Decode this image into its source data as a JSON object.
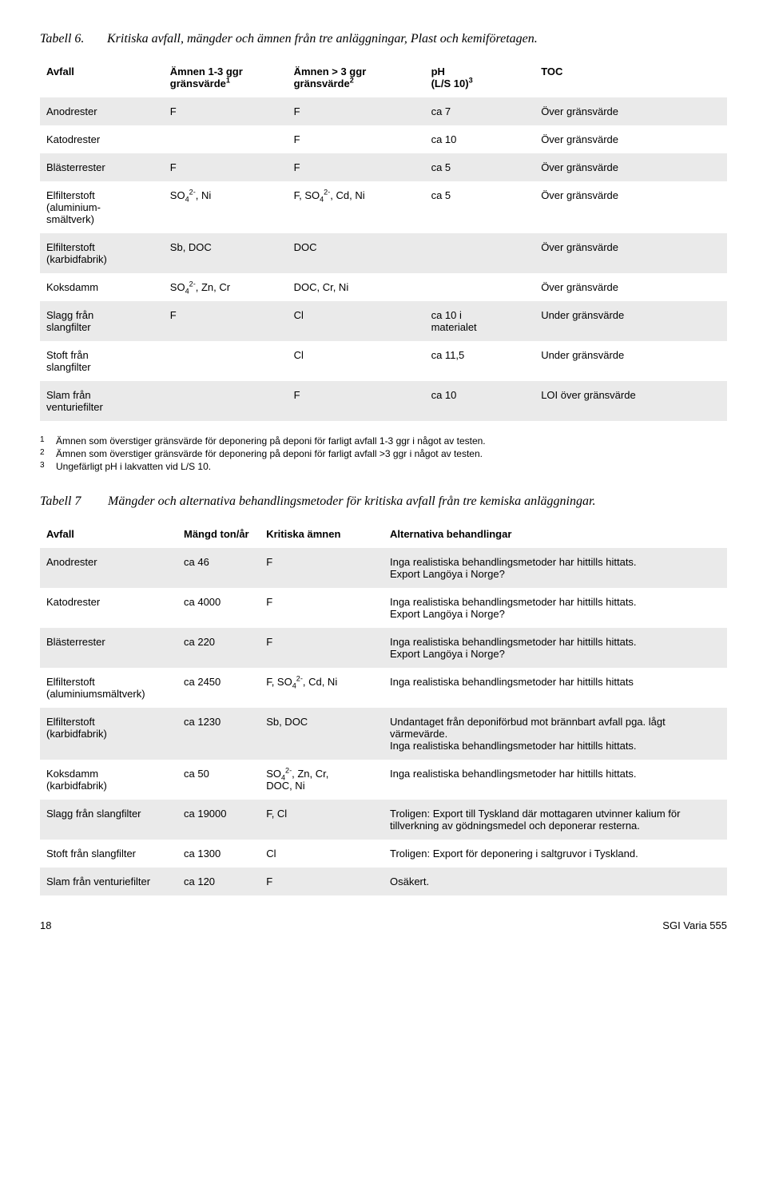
{
  "table6": {
    "caption_label": "Tabell 6.",
    "caption_text": "Kritiska avfall, mängder och ämnen från tre anläggningar, Plast och kemiföretagen.",
    "headers": {
      "avfall": "Avfall",
      "amn1_l1": "Ämnen 1-3 ggr",
      "amn1_l2": "gränsvärde",
      "amn2_l1": "Ämnen > 3 ggr",
      "amn2_l2": "gränsvärde",
      "ph_l1": "pH",
      "ph_l2": "(L/S 10)",
      "toc": "TOC"
    },
    "row_bg_odd": "#eaeaea",
    "row_bg_even": "#ffffff",
    "rows": [
      {
        "avfall": "Anodrester",
        "amn1": "F",
        "amn2": "F",
        "ph": "ca 7",
        "toc": "Över gränsvärde"
      },
      {
        "avfall": "Katodrester",
        "amn1": "",
        "amn2": "F",
        "ph": "ca 10",
        "toc": "Över gränsvärde"
      },
      {
        "avfall": "Blästerrester",
        "amn1": "F",
        "amn2": "F",
        "ph": "ca 5",
        "toc": "Över gränsvärde"
      },
      {
        "avfall_html": "Elfilterstoft<br>(aluminium-<br>smältverk)",
        "amn1_html": "SO<sub>4</sub><sup>2-</sup>, Ni",
        "amn2_html": "F, SO<sub>4</sub><sup>2-</sup>, Cd, Ni",
        "ph": "ca 5",
        "toc": "Över gränsvärde"
      },
      {
        "avfall_html": "Elfilterstoft<br>(karbidfabrik)",
        "amn1": "Sb, DOC",
        "amn2": "DOC",
        "ph": "",
        "toc": "Över gränsvärde"
      },
      {
        "avfall": "Koksdamm",
        "amn1_html": "SO<sub>4</sub><sup>2-</sup>, Zn, Cr",
        "amn2": "DOC, Cr, Ni",
        "ph": "",
        "toc": "Över gränsvärde"
      },
      {
        "avfall_html": "Slagg från<br>slangfilter",
        "amn1": "F",
        "amn2": "Cl",
        "ph_html": "ca 10 i<br>materialet",
        "toc": "Under gränsvärde"
      },
      {
        "avfall_html": "Stoft från<br>slangfilter",
        "amn1": "",
        "amn2": "Cl",
        "ph": "ca 11,5",
        "toc": "Under gränsvärde"
      },
      {
        "avfall_html": "Slam från<br>venturiefilter",
        "amn1": "",
        "amn2": "F",
        "ph": "ca 10",
        "toc": "LOI över gränsvärde"
      }
    ],
    "footnotes": [
      {
        "n": "1",
        "t": "Ämnen som överstiger gränsvärde för deponering på deponi för farligt avfall 1-3 ggr i något av testen."
      },
      {
        "n": "2",
        "t": "Ämnen som överstiger gränsvärde för deponering på deponi för farligt avfall >3 ggr i något av testen."
      },
      {
        "n": "3",
        "t": "Ungefärligt pH i lakvatten vid L/S 10."
      }
    ]
  },
  "table7": {
    "caption_label": "Tabell 7",
    "caption_text": "Mängder och alternativa behandlingsmetoder för kritiska avfall från tre kemiska anläggningar.",
    "headers": {
      "avfall": "Avfall",
      "mangd": "Mängd ton/år",
      "kritiska": "Kritiska ämnen",
      "alt": "Alternativa behandlingar"
    },
    "rows": [
      {
        "avfall": "Anodrester",
        "mangd": "ca 46",
        "kritiska": "F",
        "alt": "Inga realistiska behandlingsmetoder har hittills hittats.\nExport Langöya i Norge?"
      },
      {
        "avfall": "Katodrester",
        "mangd": "ca 4000",
        "kritiska": "F",
        "alt": "Inga realistiska behandlingsmetoder har hittills hittats.\nExport Langöya i Norge?"
      },
      {
        "avfall": "Blästerrester",
        "mangd": "ca 220",
        "kritiska": "F",
        "alt": "Inga realistiska behandlingsmetoder har hittills hittats.\nExport Langöya i Norge?"
      },
      {
        "avfall_html": "Elfilterstoft<br>(aluminiumsmältverk)",
        "mangd": "ca 2450",
        "kritiska_html": "F, SO<sub>4</sub><sup>2-</sup>, Cd, Ni",
        "alt": "Inga realistiska behandlingsmetoder har hittills hittats"
      },
      {
        "avfall_html": "Elfilterstoft<br>(karbidfabrik)",
        "mangd": "ca 1230",
        "kritiska": "Sb, DOC",
        "alt": "Undantaget från deponiförbud mot brännbart avfall pga. lågt värmevärde.\nInga realistiska behandlingsmetoder har hittills hittats."
      },
      {
        "avfall_html": "Koksdamm<br>(karbidfabrik)",
        "mangd": "ca 50",
        "kritiska_html": "SO<sub>4</sub><sup>2-</sup>, Zn, Cr,<br>DOC, Ni",
        "alt": "Inga realistiska behandlingsmetoder har hittills hittats."
      },
      {
        "avfall": "Slagg från slangfilter",
        "mangd": "ca 19000",
        "kritiska": "F, Cl",
        "alt": "Troligen: Export till Tyskland där mottagaren utvinner kalium för tillverkning av gödningsmedel och deponerar resterna."
      },
      {
        "avfall": "Stoft från slangfilter",
        "mangd": "ca 1300",
        "kritiska": "Cl",
        "alt": "Troligen: Export för deponering i saltgruvor i Tyskland."
      },
      {
        "avfall": "Slam från venturiefilter",
        "mangd": "ca 120",
        "kritiska": "F",
        "alt": "Osäkert."
      }
    ]
  },
  "footer": {
    "page": "18",
    "doc": "SGI Varia 555"
  }
}
